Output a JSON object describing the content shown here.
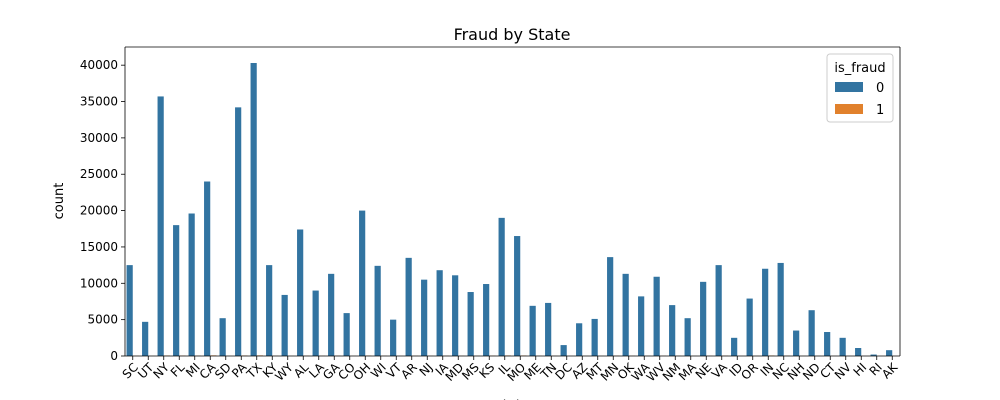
{
  "chart_data": {
    "type": "bar",
    "title": "Fraud by State",
    "xlabel": "state",
    "ylabel": "count",
    "ylim": [
      0,
      42500
    ],
    "yticks": [
      0,
      5000,
      10000,
      15000,
      20000,
      25000,
      30000,
      35000,
      40000
    ],
    "grid": false,
    "legend": {
      "title": "is_fraud",
      "placement": "top-right"
    },
    "categories": [
      "SC",
      "UT",
      "NY",
      "FL",
      "MI",
      "CA",
      "SD",
      "PA",
      "TX",
      "KY",
      "WY",
      "AL",
      "LA",
      "GA",
      "CO",
      "OH",
      "WI",
      "VT",
      "AR",
      "NJ",
      "IA",
      "MD",
      "MS",
      "KS",
      "IL",
      "MO",
      "ME",
      "TN",
      "DC",
      "AZ",
      "MT",
      "MN",
      "OK",
      "WA",
      "WV",
      "NM",
      "MA",
      "NE",
      "VA",
      "ID",
      "OR",
      "IN",
      "NC",
      "NH",
      "ND",
      "CT",
      "NV",
      "HI",
      "RI",
      "AK"
    ],
    "series": [
      {
        "name": "0",
        "color": "#3274a1",
        "values": [
          12500,
          4700,
          35700,
          18000,
          19600,
          24000,
          5200,
          34200,
          40300,
          12500,
          8400,
          17400,
          9000,
          11300,
          5900,
          20000,
          12400,
          5000,
          13500,
          10500,
          11800,
          11100,
          8800,
          9900,
          19000,
          16500,
          6900,
          7300,
          1500,
          4500,
          5100,
          13600,
          11300,
          8200,
          10900,
          7000,
          5200,
          10200,
          12500,
          2500,
          7900,
          12000,
          12800,
          3500,
          6300,
          3300,
          2500,
          1100,
          200,
          800
        ]
      },
      {
        "name": "1",
        "color": "#e1812c",
        "values": [
          20,
          10,
          60,
          40,
          30,
          80,
          10,
          60,
          80,
          20,
          10,
          30,
          20,
          30,
          10,
          50,
          20,
          10,
          20,
          20,
          20,
          20,
          20,
          30,
          70,
          60,
          20,
          20,
          5,
          10,
          10,
          30,
          20,
          20,
          20,
          20,
          10,
          20,
          30,
          5,
          10,
          60,
          30,
          10,
          10,
          10,
          5,
          5,
          2,
          5
        ]
      }
    ]
  }
}
